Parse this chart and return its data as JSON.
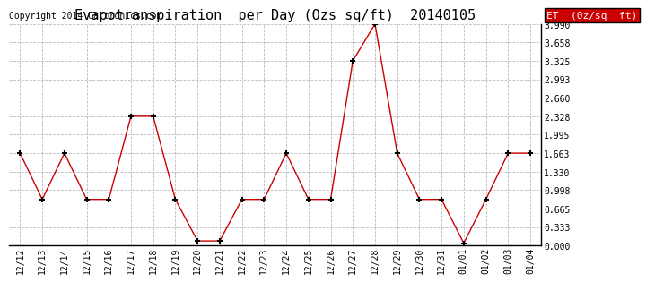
{
  "title": "Evapotranspiration  per Day (Ozs sq/ft)  20140105",
  "copyright": "Copyright 2014 Cartronics.com",
  "legend_label": "ET  (0z/sq  ft)",
  "x_labels": [
    "12/12",
    "12/13",
    "12/14",
    "12/15",
    "12/16",
    "12/17",
    "12/18",
    "12/19",
    "12/20",
    "12/21",
    "12/22",
    "12/23",
    "12/24",
    "12/25",
    "12/26",
    "12/27",
    "12/28",
    "12/29",
    "12/30",
    "12/31",
    "01/01",
    "01/02",
    "01/03",
    "01/04"
  ],
  "y_values": [
    1.663,
    0.831,
    1.663,
    0.831,
    0.831,
    2.328,
    2.328,
    0.831,
    0.083,
    0.083,
    0.831,
    0.831,
    1.663,
    0.831,
    0.831,
    3.325,
    3.99,
    1.663,
    0.831,
    0.831,
    0.042,
    0.831,
    1.663,
    1.663
  ],
  "ylim": [
    0.0,
    3.99
  ],
  "yticks": [
    0.0,
    0.333,
    0.665,
    0.998,
    1.33,
    1.663,
    1.995,
    2.328,
    2.66,
    2.993,
    3.325,
    3.658,
    3.99
  ],
  "line_color": "#cc0000",
  "marker_color": "#000000",
  "background_color": "#ffffff",
  "grid_color": "#bbbbbb",
  "legend_bg": "#cc0000",
  "legend_text_color": "#ffffff",
  "title_fontsize": 11,
  "copyright_fontsize": 7,
  "tick_fontsize": 7,
  "legend_fontsize": 8
}
